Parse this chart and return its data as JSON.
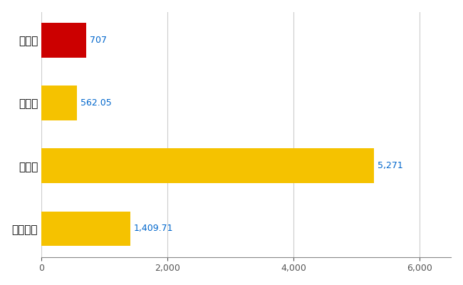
{
  "categories": [
    "広陵町",
    "県平均",
    "県最大",
    "全国平均"
  ],
  "values": [
    707,
    562.05,
    5271,
    1409.71
  ],
  "bar_colors": [
    "#cc0000",
    "#f5c200",
    "#f5c200",
    "#f5c200"
  ],
  "value_labels": [
    "707",
    "562.05",
    "5,271",
    "1,409.71"
  ],
  "bar_height": 0.55,
  "xlim": [
    0,
    6500
  ],
  "xticks": [
    0,
    2000,
    4000,
    6000
  ],
  "background_color": "#ffffff",
  "grid_color": "#cccccc",
  "label_color": "#0066cc",
  "text_color": "#000000",
  "fontsize_labels": 11,
  "fontsize_values": 9
}
